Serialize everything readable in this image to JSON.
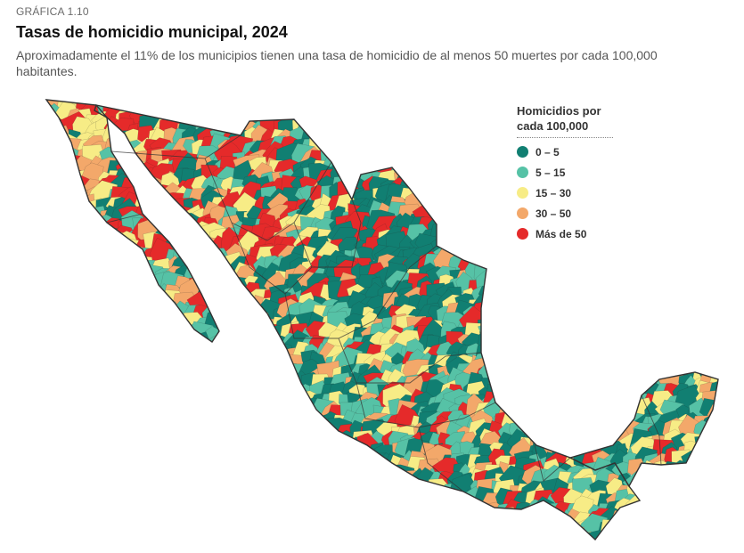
{
  "header": {
    "label": "GRÁFICA 1.10",
    "title": "Tasas de homicidio municipal, 2024",
    "subtitle": "Aproximadamente el 11% de los municipios tienen una tasa de homicidio de al menos 50 muertes por cada 100,000 habitantes."
  },
  "legend": {
    "title_line1": "Homicidios por",
    "title_line2": "cada 100,000",
    "items": [
      {
        "label": "0 – 5",
        "color": "#117f72"
      },
      {
        "label": "5 – 15",
        "color": "#56c2a6"
      },
      {
        "label": "15 – 30",
        "color": "#f7ec86"
      },
      {
        "label": "30 – 50",
        "color": "#f3a86a"
      },
      {
        "label": "Más de 50",
        "color": "#e52a2a"
      }
    ]
  },
  "map": {
    "country": "México",
    "border_color": "#333333"
  }
}
